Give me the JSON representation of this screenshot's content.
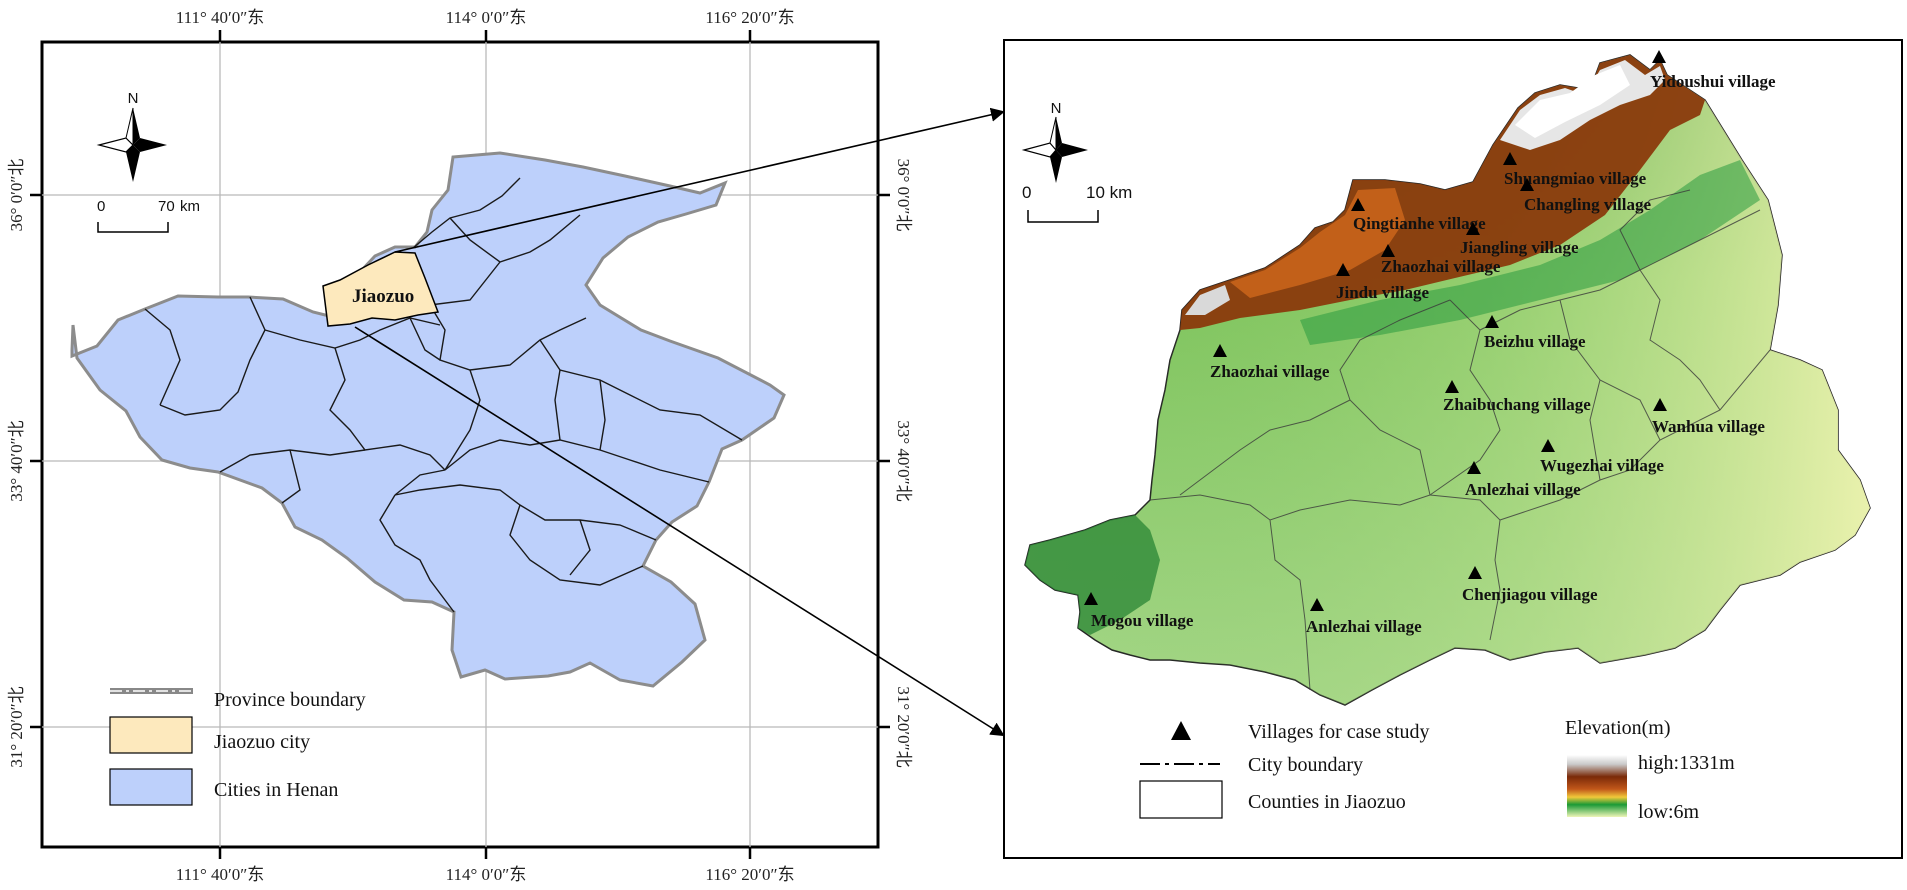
{
  "left_map": {
    "top_ticks": [
      "111° 40′0″东",
      "114° 0′0″东",
      "116° 20′0″东"
    ],
    "bottom_ticks": [
      "111° 40′0″东",
      "114° 0′0″东",
      "116° 20′0″东"
    ],
    "side_ticks": [
      "36° 0′0″北",
      "33° 40′0″北",
      "31° 20′0″北"
    ],
    "north": "N",
    "scale": {
      "zero": "0",
      "end": "70",
      "unit": "km"
    },
    "highlight_label": "Jiaozuo",
    "legend": [
      {
        "label": "Province boundary"
      },
      {
        "label": "Jiaozuo city",
        "color": "#fde9bd"
      },
      {
        "label": "Cities in Henan",
        "color": "#bdd0fb"
      }
    ]
  },
  "right_map": {
    "north": "N",
    "scale": {
      "zero": "0",
      "end": "10 km"
    },
    "villages": [
      {
        "name": "Yidoushui village"
      },
      {
        "name": "Shuangmiao village"
      },
      {
        "name": "Changling village"
      },
      {
        "name": "Qingtianhe village"
      },
      {
        "name": "Jiangling village"
      },
      {
        "name": "Zhaozhai village"
      },
      {
        "name": "Jindu village"
      },
      {
        "name": "Beizhu village"
      },
      {
        "name": "Zhaozhai village"
      },
      {
        "name": "Zhaibuchang village"
      },
      {
        "name": "Wanhua village"
      },
      {
        "name": "Wugezhai village"
      },
      {
        "name": "Anlezhai village"
      },
      {
        "name": "Chenjiagou village"
      },
      {
        "name": "Mogou village"
      },
      {
        "name": "Anlezhai village"
      }
    ],
    "legend": [
      {
        "label": "Villages for case study"
      },
      {
        "label": "City boundary"
      },
      {
        "label": "Counties in Jiaozuo"
      }
    ],
    "elevation": {
      "title": "Elevation(m)",
      "high": "high:1331m",
      "low": "low:6m"
    }
  }
}
